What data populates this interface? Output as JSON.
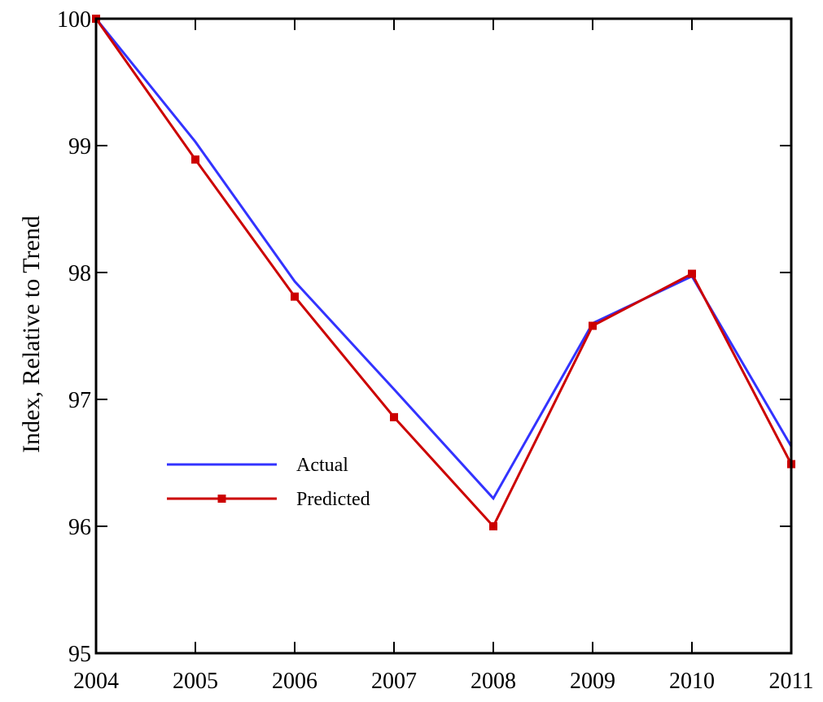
{
  "chart_data": {
    "type": "line",
    "x": [
      2004,
      2005,
      2006,
      2007,
      2008,
      2009,
      2010,
      2011
    ],
    "series": [
      {
        "name": "Actual",
        "color": "#3333ff",
        "marker": "none",
        "values": [
          100.0,
          99.03,
          97.93,
          97.08,
          96.22,
          97.6,
          97.97,
          96.63
        ]
      },
      {
        "name": "Predicted",
        "color": "#cc0000",
        "marker": "square",
        "values": [
          100.0,
          98.89,
          97.81,
          96.86,
          96.0,
          97.58,
          97.99,
          96.49
        ]
      }
    ],
    "xticks": [
      "2004",
      "2005",
      "2006",
      "2007",
      "2008",
      "2009",
      "2010",
      "2011"
    ],
    "yticks": [
      "95",
      "96",
      "97",
      "98",
      "99",
      "100"
    ],
    "xlim": [
      2004,
      2011
    ],
    "ylim": [
      95,
      100
    ],
    "title": "",
    "xlabel": "",
    "ylabel": "Index, Relative to Trend",
    "grid": false,
    "legend_position": "center-left"
  }
}
